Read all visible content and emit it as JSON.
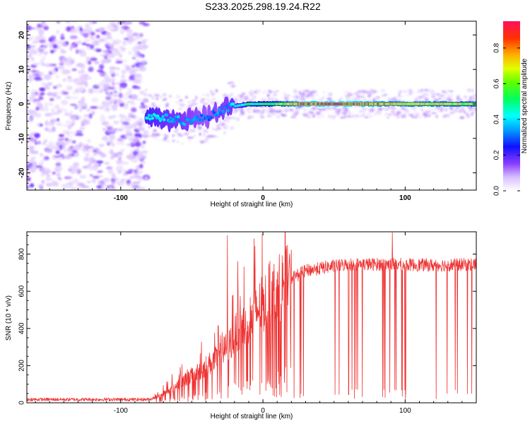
{
  "page_title": "S233.2025.298.19.24.R22",
  "chart_data": [
    {
      "type": "heatmap",
      "xlabel": "Height of straight line (km)",
      "ylabel": "Frequency (Hz)",
      "xlim": [
        -166,
        150
      ],
      "ylim": [
        -25,
        24
      ],
      "xticks": [
        -100,
        0,
        100
      ],
      "yticks": [
        -20,
        -10,
        0,
        10,
        20
      ],
      "colorbar": {
        "label": "Normalized spectral amplitude",
        "range": [
          0,
          0.95
        ],
        "ticks": [
          "0.0",
          "0.2",
          "0.4",
          "0.6",
          "0.8"
        ],
        "tick_values": [
          0.0,
          0.2,
          0.4,
          0.6,
          0.8
        ]
      },
      "features": {
        "noise_region_x": [
          -166,
          -82
        ],
        "signal_track": [
          {
            "x": -82,
            "freq": -3.5,
            "amp": 0.45
          },
          {
            "x": -70,
            "freq": -4,
            "amp": 0.4
          },
          {
            "x": -55,
            "freq": -5,
            "amp": 0.35
          },
          {
            "x": -40,
            "freq": -4,
            "amp": 0.3
          },
          {
            "x": -25,
            "freq": -1,
            "amp": 0.35
          },
          {
            "x": -10,
            "freq": 0,
            "amp": 0.5
          },
          {
            "x": 10,
            "freq": 0,
            "amp": 0.6
          },
          {
            "x": 30,
            "freq": 0,
            "amp": 0.85
          },
          {
            "x": 60,
            "freq": 0,
            "amp": 0.9
          },
          {
            "x": 85,
            "freq": 0,
            "amp": 0.75
          },
          {
            "x": 120,
            "freq": 0,
            "amp": 0.7
          },
          {
            "x": 150,
            "freq": 0,
            "amp": 0.65
          }
        ]
      }
    },
    {
      "type": "line",
      "xlabel": "Height of straight line (km)",
      "ylabel": "SNR (10 * v/v)",
      "xlim": [
        -166,
        150
      ],
      "ylim": [
        0,
        920
      ],
      "xticks": [
        -100,
        0,
        100
      ],
      "yticks": [
        0,
        200,
        400,
        600,
        800
      ],
      "color": "#ee3333",
      "envelope": [
        {
          "x": -166,
          "y": 18
        },
        {
          "x": -80,
          "y": 18
        },
        {
          "x": -72,
          "y": 40
        },
        {
          "x": -60,
          "y": 100
        },
        {
          "x": -45,
          "y": 170
        },
        {
          "x": -30,
          "y": 250
        },
        {
          "x": -20,
          "y": 360
        },
        {
          "x": -10,
          "y": 450
        },
        {
          "x": 0,
          "y": 530
        },
        {
          "x": 10,
          "y": 610
        },
        {
          "x": 20,
          "y": 670
        },
        {
          "x": 30,
          "y": 710
        },
        {
          "x": 45,
          "y": 730
        },
        {
          "x": 60,
          "y": 745
        },
        {
          "x": 90,
          "y": 745
        },
        {
          "x": 120,
          "y": 740
        },
        {
          "x": 150,
          "y": 745
        }
      ],
      "peaks": [
        {
          "x": -25,
          "y": 900
        },
        {
          "x": 91,
          "y": 915
        }
      ]
    }
  ]
}
